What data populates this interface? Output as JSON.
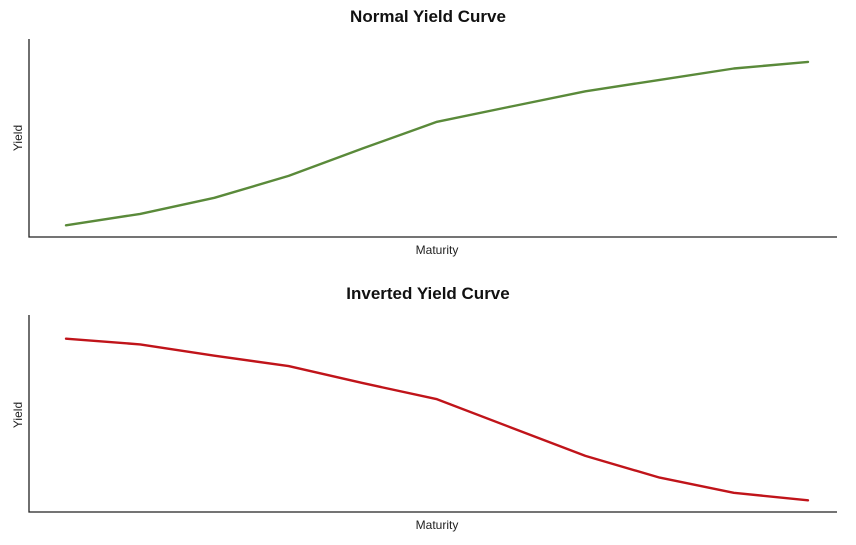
{
  "chart_data": [
    {
      "type": "line",
      "title": "Normal Yield Curve",
      "xlabel": "Maturity",
      "ylabel": "Yield",
      "xlim": [
        0,
        10
      ],
      "ylim": [
        0,
        10
      ],
      "grid": false,
      "series": [
        {
          "color": "#5a8a3a",
          "x": [
            0,
            1,
            2,
            3,
            4,
            5,
            6,
            7,
            8,
            9,
            10
          ],
          "y": [
            0.3,
            0.9,
            1.75,
            2.9,
            4.35,
            5.75,
            6.55,
            7.35,
            7.95,
            8.55,
            8.9
          ]
        }
      ]
    },
    {
      "type": "line",
      "title": "Inverted Yield Curve",
      "xlabel": "Maturity",
      "ylabel": "Yield",
      "xlim": [
        0,
        10
      ],
      "ylim": [
        0,
        10
      ],
      "grid": false,
      "series": [
        {
          "color": "#c0141a",
          "x": [
            0,
            1,
            2,
            3,
            4,
            5,
            6,
            7,
            8,
            9,
            10
          ],
          "y": [
            8.85,
            8.55,
            7.95,
            7.4,
            6.5,
            5.65,
            4.15,
            2.65,
            1.5,
            0.7,
            0.3
          ]
        }
      ]
    }
  ]
}
